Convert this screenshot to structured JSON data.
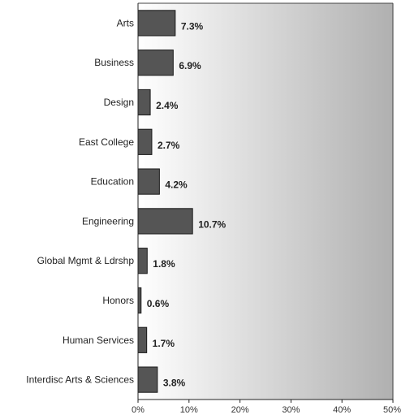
{
  "chart_data": {
    "type": "bar",
    "orientation": "horizontal",
    "categories": [
      "Arts",
      "Business",
      "Design",
      "East College",
      "Education",
      "Engineering",
      "Global Mgmt & Ldrshp",
      "Honors",
      "Human Services",
      "Interdisc Arts & Sciences"
    ],
    "values": [
      7.3,
      6.9,
      2.4,
      2.7,
      4.2,
      10.7,
      1.8,
      0.6,
      1.7,
      3.8
    ],
    "value_labels": [
      "7.3%",
      "6.9%",
      "2.4%",
      "2.7%",
      "4.2%",
      "10.7%",
      "1.8%",
      "0.6%",
      "1.7%",
      "3.8%"
    ],
    "xlim": [
      0,
      50
    ],
    "xticks": [
      0,
      10,
      20,
      30,
      40,
      50
    ],
    "xtick_labels": [
      "0%",
      "10%",
      "20%",
      "30%",
      "40%",
      "50%"
    ],
    "title": "",
    "xlabel": "",
    "ylabel": "",
    "grid": false,
    "bar_color": "#555555",
    "bar_edge_color": "#1a1a1a",
    "background_gradient": [
      "#ffffff",
      "#b0b0b0"
    ]
  }
}
